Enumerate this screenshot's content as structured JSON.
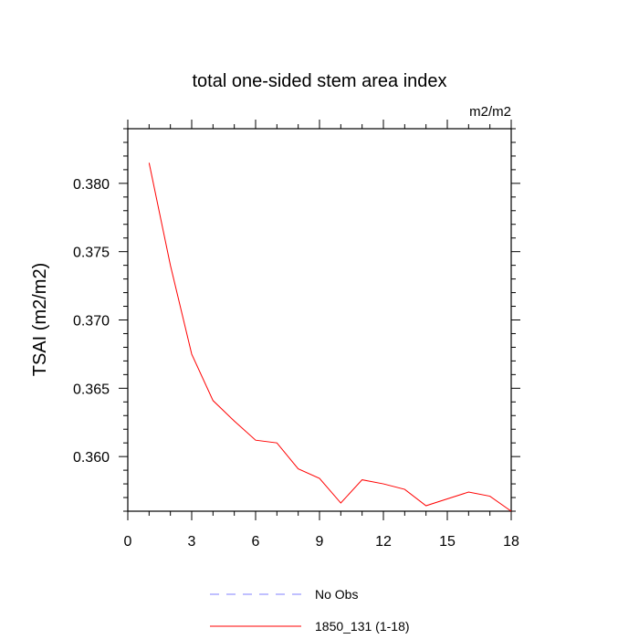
{
  "chart_data": {
    "type": "line",
    "title": "total one-sided stem area index",
    "units": "m2/m2",
    "ylabel": "TSAI  (m2/m2)",
    "xlabel": "",
    "xlim": [
      0,
      18
    ],
    "ylim": [
      0.356,
      0.384
    ],
    "xticks": [
      0,
      3,
      6,
      9,
      12,
      15,
      18
    ],
    "xtick_labels": [
      "0",
      "3",
      "6",
      "9",
      "12",
      "15",
      "18"
    ],
    "yticks": [
      0.36,
      0.365,
      0.37,
      0.375,
      0.38
    ],
    "ytick_labels": [
      "0.360",
      "0.365",
      "0.370",
      "0.375",
      "0.380"
    ],
    "grid": false,
    "legend_position": "bottom",
    "series": [
      {
        "name": "No Obs",
        "color": "#8080ff",
        "dash": "dashed",
        "x": [],
        "y": []
      },
      {
        "name": "1850_131 (1-18)",
        "color": "#ff0000",
        "dash": "solid",
        "x": [
          1,
          2,
          3,
          4,
          5,
          6,
          7,
          8,
          9,
          10,
          11,
          12,
          13,
          14,
          15,
          16,
          17,
          18
        ],
        "y": [
          0.3815,
          0.374,
          0.3675,
          0.3641,
          0.3626,
          0.3612,
          0.361,
          0.3591,
          0.3584,
          0.3566,
          0.3583,
          0.358,
          0.3576,
          0.3564,
          0.3569,
          0.3574,
          0.3571,
          0.356
        ]
      }
    ]
  }
}
